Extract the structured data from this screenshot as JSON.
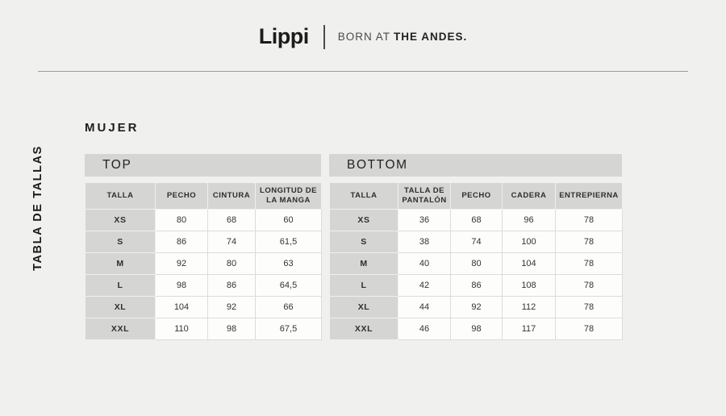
{
  "header": {
    "logo": "Lippi",
    "tagline_regular": "BORN AT",
    "tagline_bold": "THE ANDES."
  },
  "sidebar": {
    "vertical_label": "TABLA DE TALLAS"
  },
  "section": {
    "title": "MUJER"
  },
  "tables": {
    "top": {
      "title": "TOP",
      "headers": [
        "TALLA",
        "PECHO",
        "CINTURA",
        "LONGITUD DE LA MANGA"
      ],
      "rows": [
        [
          "XS",
          "80",
          "68",
          "60"
        ],
        [
          "S",
          "86",
          "74",
          "61,5"
        ],
        [
          "M",
          "92",
          "80",
          "63"
        ],
        [
          "L",
          "98",
          "86",
          "64,5"
        ],
        [
          "XL",
          "104",
          "92",
          "66"
        ],
        [
          "XXL",
          "110",
          "98",
          "67,5"
        ]
      ]
    },
    "bottom": {
      "title": "BOTTOM",
      "headers": [
        "TALLA",
        "TALLA DE PANTALÓN",
        "PECHO",
        "CADERA",
        "ENTREPIERNA"
      ],
      "rows": [
        [
          "XS",
          "36",
          "68",
          "96",
          "78"
        ],
        [
          "S",
          "38",
          "74",
          "100",
          "78"
        ],
        [
          "M",
          "40",
          "80",
          "104",
          "78"
        ],
        [
          "L",
          "42",
          "86",
          "108",
          "78"
        ],
        [
          "XL",
          "44",
          "92",
          "112",
          "78"
        ],
        [
          "XXL",
          "46",
          "98",
          "117",
          "78"
        ]
      ]
    }
  },
  "colors": {
    "background": "#f0f0ee",
    "bar_gray": "#d5d5d4",
    "cell_white": "#fdfdfc",
    "cell_border": "#dcdcda",
    "text": "#2b2b2b"
  }
}
